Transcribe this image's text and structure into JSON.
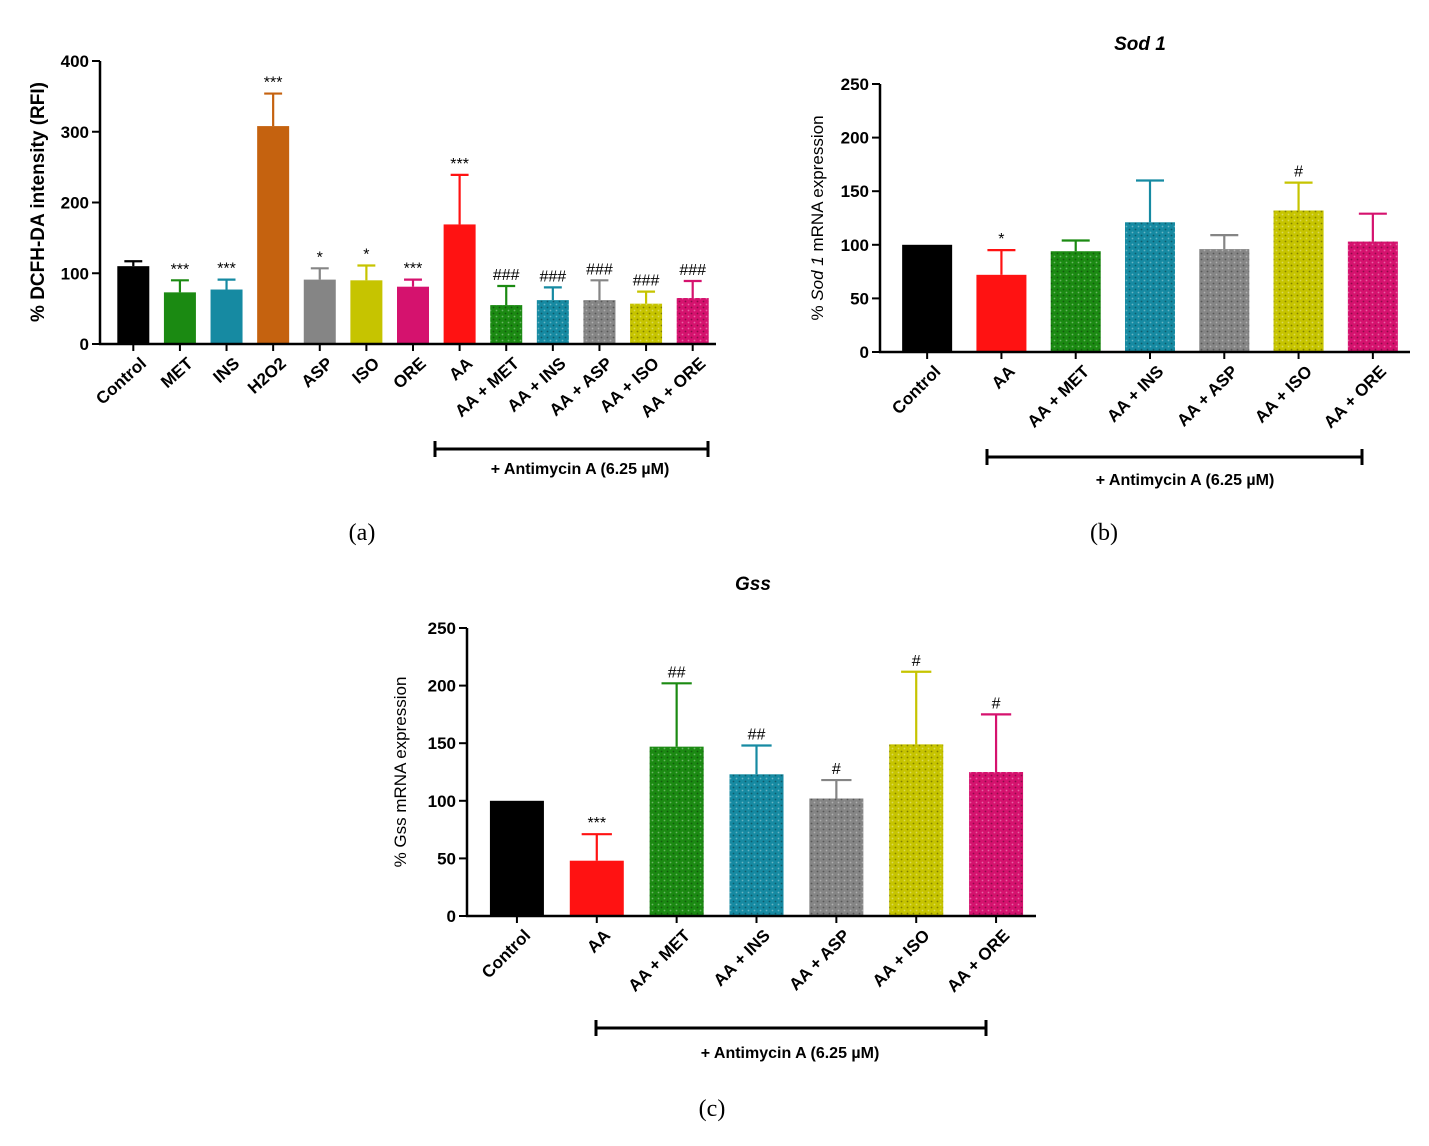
{
  "chart_data": [
    {
      "type": "bar",
      "panel_label": "(a)",
      "title": "",
      "ylabel": "% DCFH-DA intensity (RFI)",
      "ylim": [
        0,
        400
      ],
      "yticks": [
        "0",
        "100",
        "200",
        "300",
        "400"
      ],
      "categories": [
        "Control",
        "MET",
        "INS",
        "H2O2",
        "ASP",
        "ISO",
        "ORE",
        "AA",
        "AA + MET",
        "AA + INS",
        "AA + ASP",
        "AA + ISO",
        "AA + ORE"
      ],
      "values": [
        110,
        73,
        77,
        308,
        91,
        90,
        81,
        169,
        55,
        62,
        62,
        57,
        65
      ],
      "errors": [
        7,
        17,
        14,
        46,
        16,
        21,
        10,
        70,
        27,
        18,
        28,
        17,
        24
      ],
      "significance": [
        "",
        "***",
        "***",
        "***",
        "*",
        "*",
        "***",
        "***",
        "###",
        "###",
        "###",
        "###",
        "###"
      ],
      "colors": [
        "#000000",
        "#1b8a12",
        "#168aa2",
        "#c5620f",
        "#858585",
        "#c6c400",
        "#d5126e",
        "#ff1212",
        "#1b8a12",
        "#168aa2",
        "#858585",
        "#c6c400",
        "#d5126e"
      ],
      "patterned": [
        false,
        false,
        false,
        false,
        false,
        false,
        false,
        false,
        true,
        true,
        true,
        true,
        true
      ],
      "bracket_label": "+ Antimycin A (6.25 µM)"
    },
    {
      "type": "bar",
      "panel_label": "(b)",
      "title": "Sod 1",
      "ylabel_italic": "Sod 1",
      "ylabel_prefix": "% ",
      "ylabel_suffix": " mRNA expression",
      "ylim": [
        0,
        250
      ],
      "yticks": [
        "0",
        "50",
        "100",
        "150",
        "200",
        "250"
      ],
      "categories": [
        "Control",
        "AA",
        "AA + MET",
        "AA + INS",
        "AA + ASP",
        "AA + ISO",
        "AA + ORE"
      ],
      "values": [
        100,
        72,
        94,
        121,
        96,
        132,
        103
      ],
      "errors": [
        0,
        23,
        10,
        39,
        13,
        26,
        26
      ],
      "significance": [
        "",
        "*",
        "",
        "",
        "",
        "#",
        ""
      ],
      "colors": [
        "#000000",
        "#ff1212",
        "#1b8a12",
        "#168aa2",
        "#858585",
        "#c6c400",
        "#d5126e"
      ],
      "patterned": [
        false,
        false,
        true,
        true,
        true,
        true,
        true
      ],
      "bracket_label": "+ Antimycin A (6.25 µM)"
    },
    {
      "type": "bar",
      "panel_label": "(c)",
      "title": "Gss",
      "ylabel": "% Gss mRNA expression",
      "ylim": [
        0,
        250
      ],
      "yticks": [
        "0",
        "50",
        "100",
        "150",
        "200",
        "250"
      ],
      "categories": [
        "Control",
        "AA",
        "AA + MET",
        "AA + INS",
        "AA + ASP",
        "AA + ISO",
        "AA + ORE"
      ],
      "values": [
        100,
        48,
        147,
        123,
        102,
        149,
        125
      ],
      "errors": [
        0,
        23,
        55,
        25,
        16,
        63,
        50
      ],
      "significance": [
        "",
        "***",
        "##",
        "##",
        "#",
        "#",
        "#"
      ],
      "colors": [
        "#000000",
        "#ff1212",
        "#1b8a12",
        "#168aa2",
        "#858585",
        "#c6c400",
        "#d5126e"
      ],
      "patterned": [
        false,
        false,
        true,
        true,
        true,
        true,
        true
      ],
      "bracket_label": "+ Antimycin A (6.25 µM)"
    }
  ]
}
